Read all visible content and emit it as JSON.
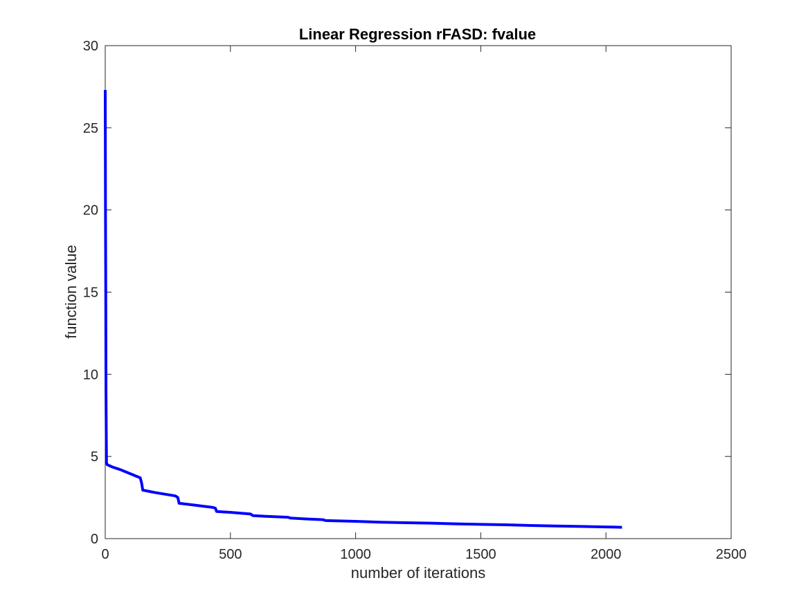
{
  "chart_data": {
    "type": "line",
    "title": "Linear Regression rFASD: fvalue",
    "xlabel": "number of iterations",
    "ylabel": "function value",
    "xlim": [
      0,
      2500
    ],
    "ylim": [
      0,
      30
    ],
    "xticks": [
      0,
      500,
      1000,
      1500,
      2000,
      2500
    ],
    "yticks": [
      0,
      5,
      10,
      15,
      20,
      25,
      30
    ],
    "xtick_labels": [
      "0",
      "500",
      "1000",
      "1500",
      "2000",
      "2500"
    ],
    "ytick_labels": [
      "0",
      "5",
      "10",
      "15",
      "20",
      "25",
      "30"
    ],
    "grid": false,
    "series": [
      {
        "color": "#0000ff",
        "x": [
          0,
          1,
          2,
          3,
          4,
          5,
          8,
          15,
          30,
          60,
          100,
          140,
          145,
          150,
          200,
          280,
          290,
          295,
          350,
          430,
          440,
          445,
          500,
          580,
          585,
          590,
          650,
          730,
          740,
          800,
          870,
          880,
          1000,
          1100,
          1200,
          1300,
          1400,
          1500,
          1600,
          1700,
          1800,
          1900,
          2000,
          2064
        ],
        "y": [
          27.3,
          20.0,
          15.5,
          9.0,
          6.5,
          4.6,
          4.5,
          4.45,
          4.35,
          4.2,
          3.95,
          3.7,
          3.4,
          2.95,
          2.8,
          2.6,
          2.5,
          2.15,
          2.05,
          1.9,
          1.85,
          1.65,
          1.6,
          1.5,
          1.45,
          1.4,
          1.35,
          1.3,
          1.25,
          1.2,
          1.15,
          1.1,
          1.05,
          1.0,
          0.97,
          0.94,
          0.9,
          0.87,
          0.84,
          0.8,
          0.77,
          0.74,
          0.71,
          0.69
        ]
      }
    ]
  }
}
